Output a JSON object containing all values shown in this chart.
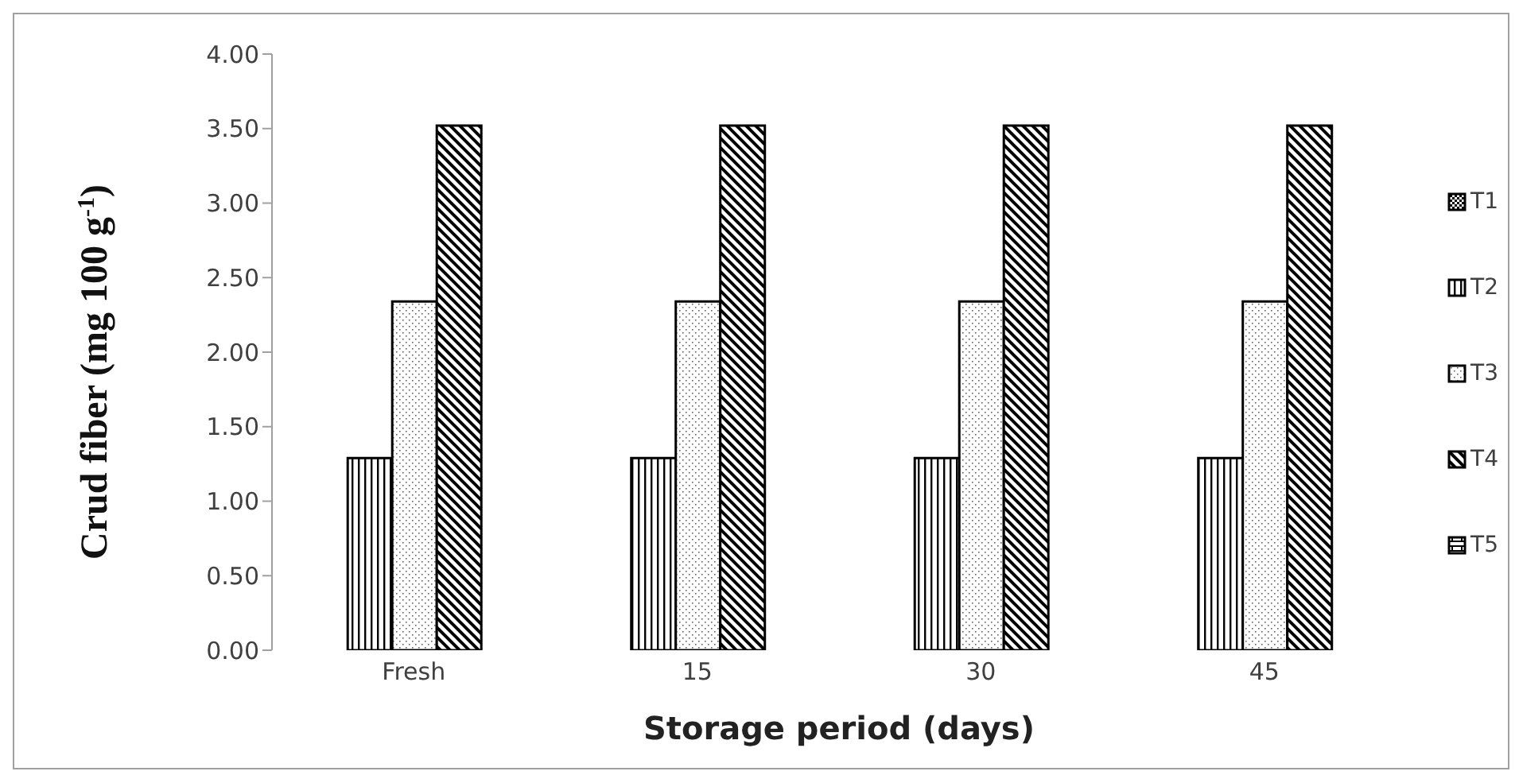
{
  "chart_data": {
    "type": "bar",
    "xlabel": "Storage period (days)",
    "ylabel": "Crud fiber (mg 100 g$^{-1}$)",
    "categories": [
      "Fresh",
      "15",
      "30",
      "45"
    ],
    "series": [
      {
        "name": "T1",
        "color": "#000000",
        "values": [
          null,
          null,
          null,
          null
        ]
      },
      {
        "name": "T2",
        "color": "#000000",
        "values": [
          1.29,
          1.29,
          1.29,
          1.29
        ]
      },
      {
        "name": "T3",
        "color": "#000000",
        "values": [
          2.34,
          2.34,
          2.34,
          2.34
        ]
      },
      {
        "name": "T4",
        "color": "#000000",
        "values": [
          3.52,
          3.52,
          3.52,
          3.52
        ]
      },
      {
        "name": "T5",
        "color": "#000000",
        "values": [
          null,
          null,
          null,
          null
        ]
      }
    ],
    "ylim": [
      0,
      4
    ],
    "yticks": [
      {
        "value": 0,
        "label": "0.00"
      },
      {
        "value": 0.5,
        "label": "0.50"
      },
      {
        "value": 1,
        "label": "1.00"
      },
      {
        "value": 1.5,
        "label": "1.50"
      },
      {
        "value": 2,
        "label": "2.00"
      },
      {
        "value": 2.5,
        "label": "2.50"
      },
      {
        "value": 3,
        "label": "3.00"
      },
      {
        "value": 3.5,
        "label": "3.50"
      },
      {
        "value": 4,
        "label": "4.00"
      }
    ],
    "grid": false,
    "legend": "right"
  }
}
